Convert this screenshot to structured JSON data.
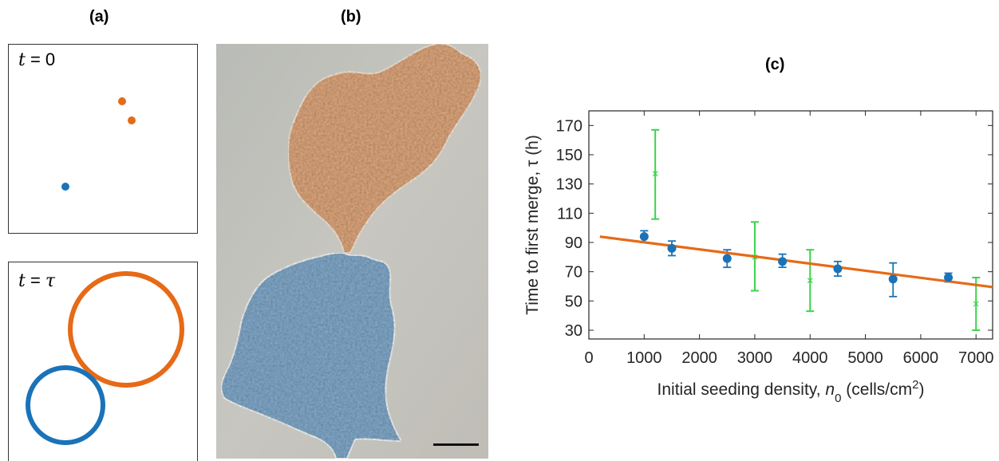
{
  "panels": {
    "a": {
      "label": "(a)",
      "top_label_var": "t",
      "top_label_rest": " = 0",
      "bottom_label_var": "t",
      "bottom_label_eq": " = ",
      "bottom_label_tau": "τ"
    },
    "b": {
      "label": "(b)"
    },
    "c": {
      "label": "(c)"
    }
  },
  "colors": {
    "orange": "#e66a17",
    "blue": "#1a73b8",
    "green": "#3bd44a",
    "fit": "#e66a17"
  },
  "chart_data": {
    "type": "scatter",
    "xlabel_pre": "Initial seeding density, ",
    "xlabel_var": "n",
    "xlabel_sub": "0",
    "xlabel_post": " (cells/cm",
    "xlabel_sup": "2",
    "xlabel_end": ")",
    "ylabel": "Time to first merge, τ (h)",
    "xlim": [
      0,
      7300
    ],
    "ylim": [
      24,
      180
    ],
    "xticks": [
      0,
      1000,
      2000,
      3000,
      4000,
      5000,
      6000,
      7000
    ],
    "yticks": [
      30,
      50,
      70,
      90,
      110,
      130,
      150,
      170
    ],
    "series": [
      {
        "points": [
          {
            "x": 1000,
            "y": 94,
            "lo": 90,
            "hi": 98
          },
          {
            "x": 1500,
            "y": 86,
            "lo": 81,
            "hi": 91
          },
          {
            "x": 2500,
            "y": 79,
            "lo": 73,
            "hi": 85
          },
          {
            "x": 3500,
            "y": 77,
            "lo": 73,
            "hi": 82
          },
          {
            "x": 4500,
            "y": 72,
            "lo": 67,
            "hi": 77
          },
          {
            "x": 5500,
            "y": 65,
            "lo": 53,
            "hi": 76
          },
          {
            "x": 6500,
            "y": 66,
            "lo": 63,
            "hi": 69
          }
        ]
      },
      {
        "points": [
          {
            "x": 1200,
            "y": 137,
            "lo": 106,
            "hi": 167
          },
          {
            "x": 3000,
            "y": 80,
            "lo": 57,
            "hi": 104
          },
          {
            "x": 4000,
            "y": 64,
            "lo": 43,
            "hi": 85
          },
          {
            "x": 7000,
            "y": 48,
            "lo": 30,
            "hi": 66
          }
        ]
      }
    ],
    "fit": {
      "x": [
        200,
        7300
      ],
      "y": [
        94,
        59.5
      ]
    }
  }
}
